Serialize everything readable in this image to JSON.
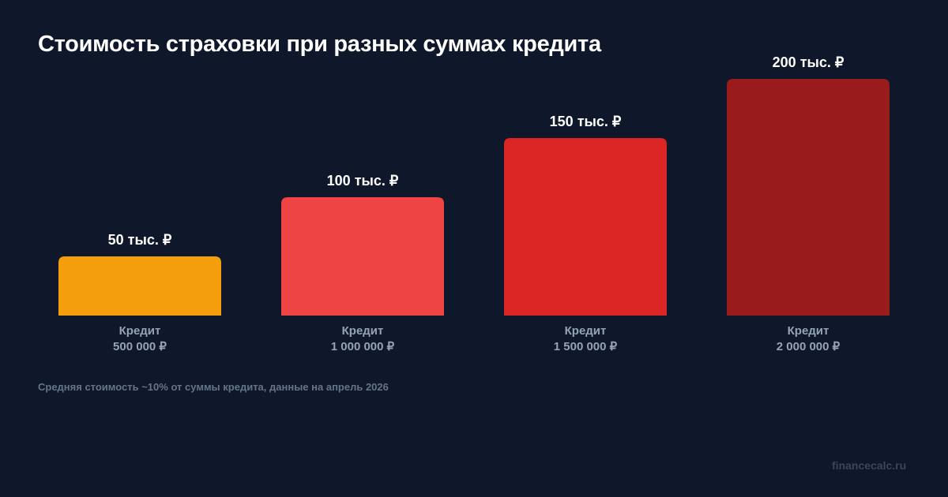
{
  "chart_data": {
    "type": "bar",
    "title": "Стоимость страховки при разных суммах кредита",
    "categories": [
      {
        "line1": "Кредит",
        "line2": "500 000 ₽"
      },
      {
        "line1": "Кредит",
        "line2": "1 000 000 ₽"
      },
      {
        "line1": "Кредит",
        "line2": "1 500 000 ₽"
      },
      {
        "line1": "Кредит",
        "line2": "2 000 000 ₽"
      }
    ],
    "values": [
      50,
      100,
      150,
      200
    ],
    "value_unit": "тыс. ₽",
    "data_labels": [
      "50 тыс. ₽",
      "100 тыс. ₽",
      "150 тыс. ₽",
      "200 тыс. ₽"
    ],
    "colors": [
      "#f59e0b",
      "#ef4444",
      "#dc2626",
      "#991b1b"
    ],
    "ylim": [
      0,
      200
    ],
    "grid": false,
    "legend": "none",
    "xlabel": "",
    "ylabel": ""
  },
  "footnote": "Средняя стоимость ~10% от суммы кредита, данные на апрель 2026",
  "watermark": "financecalc.ru"
}
